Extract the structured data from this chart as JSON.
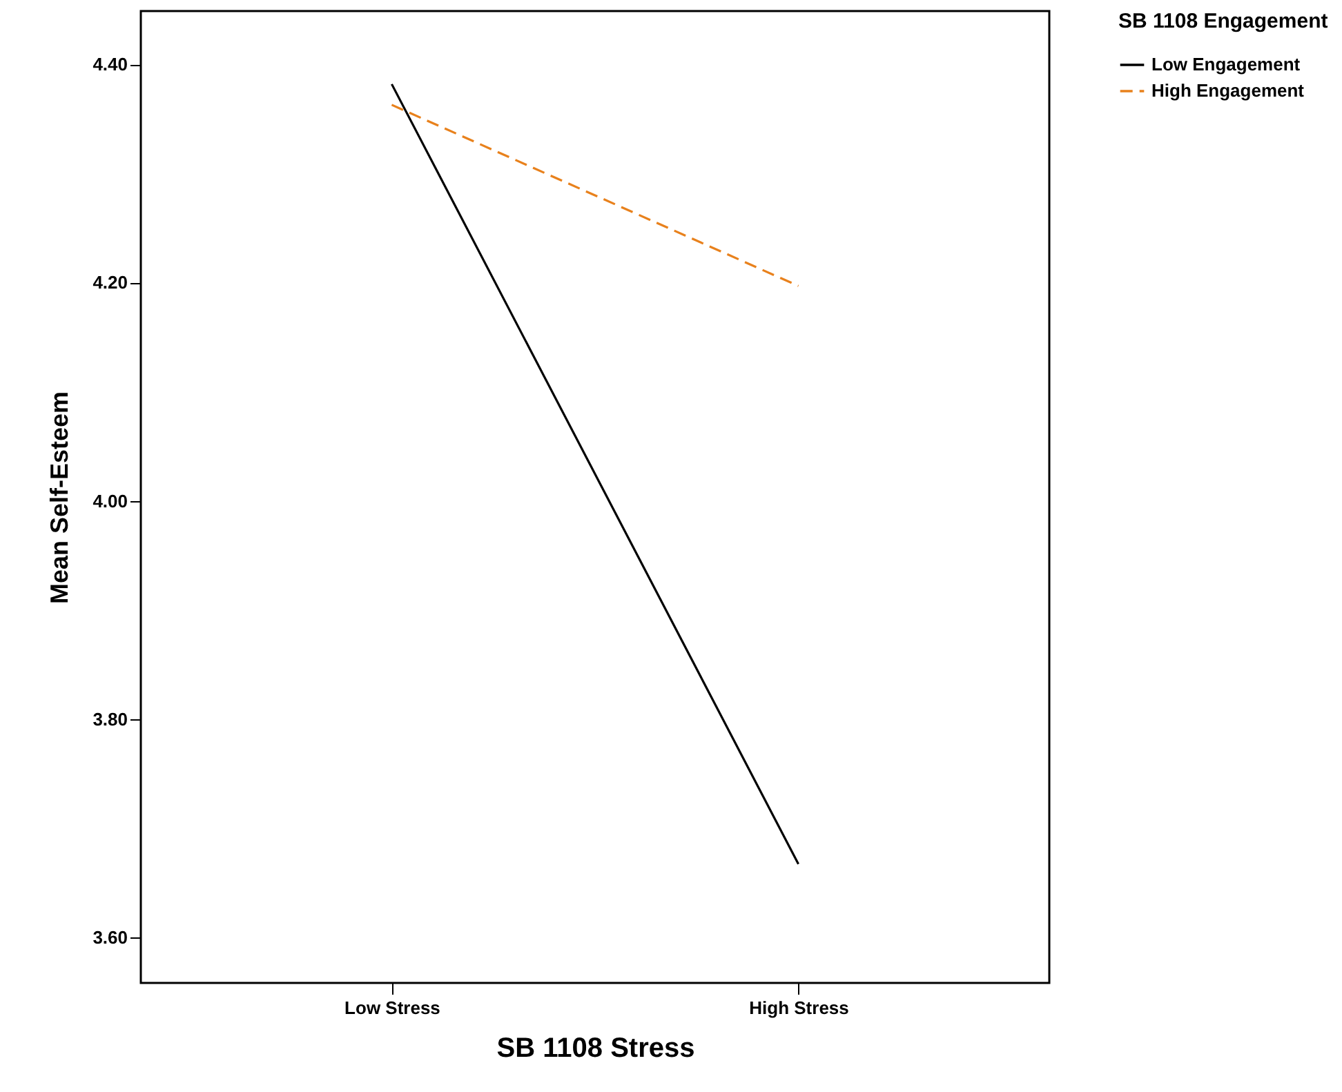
{
  "chart_data": {
    "type": "line",
    "xlabel": "SB 1108 Stress",
    "ylabel": "Mean Self-Esteem",
    "legend_title": "SB 1108 Engagement",
    "categories": [
      "Low Stress",
      "High Stress"
    ],
    "series": [
      {
        "name": "Low Engagement",
        "color": "#000000",
        "line_style": "solid",
        "values": [
          4.382,
          3.667
        ]
      },
      {
        "name": "High Engagement",
        "color": "#e8811c",
        "line_style": "dashed",
        "values": [
          4.363,
          4.197
        ]
      }
    ],
    "ylim": [
      3.558,
      4.449
    ],
    "yticks": [
      {
        "value": 3.6,
        "label": "3.60"
      },
      {
        "value": 3.8,
        "label": "3.80"
      },
      {
        "value": 4.0,
        "label": "4.00"
      },
      {
        "value": 4.2,
        "label": "4.20"
      },
      {
        "value": 4.4,
        "label": "4.40"
      }
    ],
    "grid": false,
    "legend": "top right",
    "marker": "none"
  }
}
